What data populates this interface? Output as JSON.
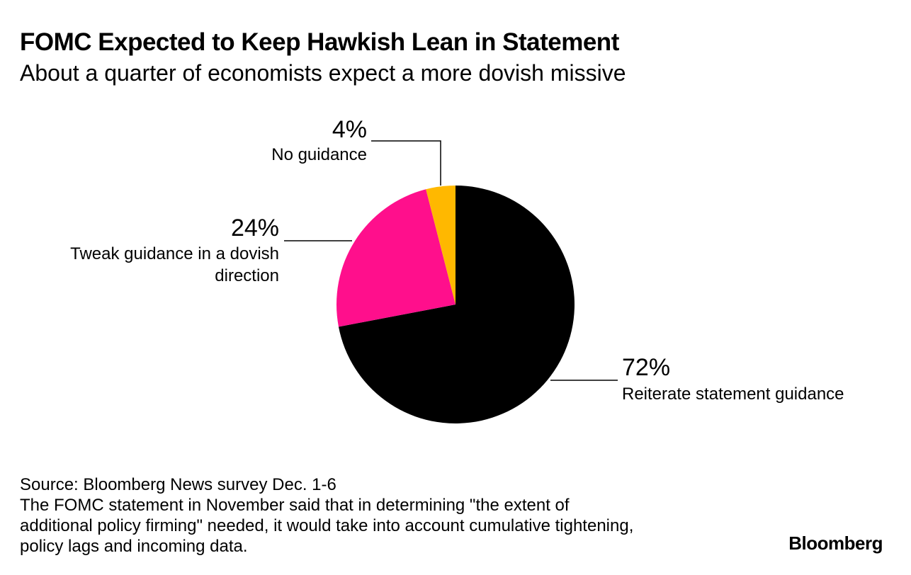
{
  "chart_data": {
    "type": "pie",
    "title": "FOMC Expected to Keep Hawkish Lean in Statement",
    "subtitle": "About a quarter of economists expect a more dovish missive",
    "slices": [
      {
        "label": "Reiterate statement guidance",
        "value": 72,
        "value_label": "72%",
        "color": "#000000"
      },
      {
        "label": "Tweak guidance in a dovish direction",
        "value": 24,
        "value_label": "24%",
        "color": "#ff0f8c"
      },
      {
        "label": "No guidance",
        "value": 4,
        "value_label": "4%",
        "color": "#ffb800"
      }
    ],
    "start": "12 o'clock",
    "direction": "clockwise"
  },
  "footer": {
    "source": "Source: Bloomberg News survey Dec. 1-6",
    "note_lines": [
      "The FOMC statement in November said that in determining \"the extent of",
      "additional policy firming\" needed, it would take into account cumulative tightening,",
      "policy lags and incoming data."
    ]
  },
  "brand": "Bloomberg"
}
